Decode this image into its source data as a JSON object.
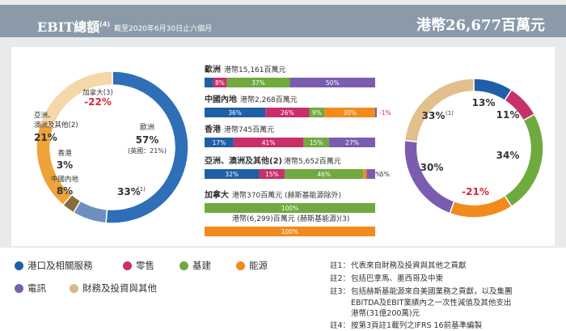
{
  "header": {
    "title": "EBIT總額",
    "title_note": "(4)",
    "subtitle": "截至2020年6月30日止六個月",
    "total": "港幣26,677百萬元"
  },
  "colors": {
    "ports": "#1f5fa8",
    "retail": "#c8306b",
    "infra": "#6faa3f",
    "energy": "#f28a1e",
    "telecom": "#7a5db0",
    "finance": "#e2c08d",
    "europe_s": "#2e6fb7",
    "china_s": "#6d8fbf",
    "hk_s": "#8a6c3a",
    "asia_s": "#eea33a",
    "canada_s": "#f4d8a8"
  },
  "chart_data": [
    {
      "type": "pie",
      "title": "EBIT by region",
      "slices": [
        {
          "key": "europe",
          "label": "歐洲",
          "value": 57,
          "display": "57%",
          "sub": "(英國：21%)"
        },
        {
          "key": "china",
          "label": "中國內地",
          "value": 8,
          "display": "8%"
        },
        {
          "key": "hk",
          "label": "香港",
          "value": 3,
          "display": "3%"
        },
        {
          "key": "asia",
          "label": "亞洲、澳洲及其他",
          "note": "(2)",
          "value": 21,
          "display": "21%"
        },
        {
          "key": "canada",
          "label": "加拿大",
          "note": "(3)",
          "value": -22,
          "display": "-22%"
        }
      ],
      "inner_label": "33%",
      "inner_note": "(1)"
    },
    {
      "type": "bar",
      "title": "EBIT by region and division",
      "series_names": [
        "港口及相關服務",
        "零售",
        "基建",
        "能源",
        "電訊",
        "財務及投資與其他"
      ],
      "rows": [
        {
          "region": "歐洲",
          "amount": "港幣15,161百萬元",
          "values": [
            5,
            8,
            37,
            0,
            50
          ],
          "labels": [
            "5%",
            "8%",
            "37%",
            "",
            "50%"
          ]
        },
        {
          "region": "中國內地",
          "amount": "港幣2,268百萬元",
          "values": [
            36,
            26,
            9,
            30,
            0
          ],
          "labels": [
            "36%",
            "26%",
            "9%",
            "30%",
            ""
          ],
          "negative": "-1%"
        },
        {
          "region": "香港",
          "amount": "港幣745百萬元",
          "values": [
            17,
            41,
            15,
            0,
            27
          ],
          "labels": [
            "17%",
            "41%",
            "15%",
            "",
            "27%"
          ]
        },
        {
          "region": "亞洲、澳洲及其他",
          "note": "(2)",
          "amount": "港幣5,652百萬元",
          "values": [
            32,
            15,
            46,
            2,
            5
          ],
          "labels": [
            "32%",
            "15%",
            "46%",
            "2%",
            "5%"
          ]
        },
        {
          "region": "加拿大",
          "amount": "港幣370百萬元 (赫斯基能源除外)",
          "values": [
            0,
            0,
            100,
            0,
            0
          ],
          "labels": [
            "",
            "",
            "100%",
            "",
            ""
          ]
        },
        {
          "region": "",
          "amount": "港幣(6,299)百萬元 (赫斯基能源)",
          "note": "(3)",
          "values": [
            0,
            0,
            0,
            100,
            0
          ],
          "labels": [
            "",
            "",
            "",
            "100%",
            ""
          ]
        }
      ]
    },
    {
      "type": "pie",
      "title": "EBIT by division",
      "slices": [
        {
          "key": "ports",
          "label": "港口及相關服務",
          "value": 13,
          "display": "13%"
        },
        {
          "key": "retail",
          "label": "零售",
          "value": 11,
          "display": "11%"
        },
        {
          "key": "infra",
          "label": "基建",
          "value": 34,
          "display": "34%"
        },
        {
          "key": "energy",
          "label": "能源",
          "value": -21,
          "display": "-21%"
        },
        {
          "key": "telecom",
          "label": "電訊",
          "value": 30,
          "display": "30%"
        },
        {
          "key": "finance",
          "label": "財務及投資與其他",
          "value": 33,
          "display": "33%",
          "note": "(1)"
        }
      ]
    }
  ],
  "legend": [
    {
      "key": "ports",
      "label": "港口及相關服務"
    },
    {
      "key": "retail",
      "label": "零售"
    },
    {
      "key": "infra",
      "label": "基建"
    },
    {
      "key": "energy",
      "label": "能源"
    },
    {
      "key": "telecom",
      "label": "電訊"
    },
    {
      "key": "finance",
      "label": "財務及投資與其他"
    }
  ],
  "notes": [
    {
      "key": "註1：",
      "text": "代表來自財務及投資與其他之貢獻"
    },
    {
      "key": "註2：",
      "text": "包括巴拿馬、墨西哥及中東"
    },
    {
      "key": "註3：",
      "text": "包括赫斯基能源來自美國業務之貢獻，以及集團"
    },
    {
      "key": "",
      "text": "EBITDA及EBIT業績內之一次性減值及其他支出"
    },
    {
      "key": "",
      "text": "港幣(31億200萬)元"
    },
    {
      "key": "註4：",
      "text": "按第3頁註1載列之IFRS 16前基準編製"
    }
  ]
}
